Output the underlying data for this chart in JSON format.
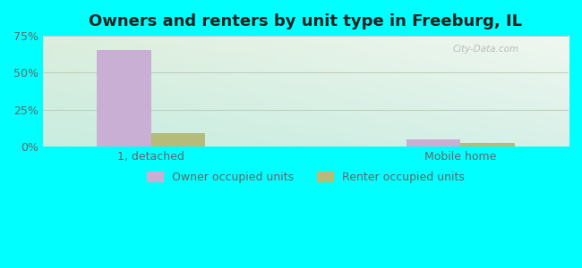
{
  "title": "Owners and renters by unit type in Freeburg, IL",
  "categories": [
    "1, detached",
    "Mobile home"
  ],
  "owner_values": [
    65.1,
    5.0
  ],
  "renter_values": [
    9.0,
    2.8
  ],
  "owner_color": "#c9afd4",
  "renter_color": "#b5bc7a",
  "ylim": [
    0,
    75
  ],
  "yticks": [
    0,
    25,
    50,
    75
  ],
  "ytick_labels": [
    "0%",
    "25%",
    "50%",
    "75%"
  ],
  "bar_width": 0.35,
  "group_positions": [
    1.0,
    3.0
  ],
  "xlim": [
    0.3,
    3.7
  ],
  "bg_color_topleft": "#ddeedd",
  "bg_color_topright": "#f0f8f0",
  "bg_color_bottomleft": "#c8ede0",
  "bg_color_bottomright": "#d8f0e8",
  "title_fontsize": 13,
  "tick_fontsize": 9,
  "legend_label_owner": "Owner occupied units",
  "legend_label_renter": "Renter occupied units",
  "watermark": "City-Data.com",
  "grid_color": "#bbccbb",
  "text_color": "#666666",
  "outer_bg": "#00ffff"
}
